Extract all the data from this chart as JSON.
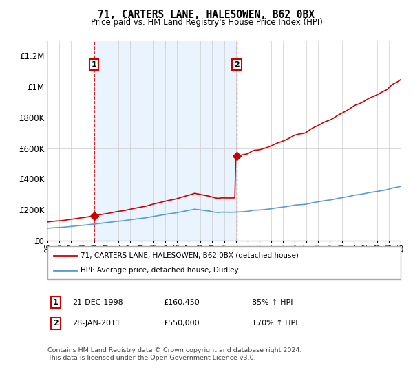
{
  "title": "71, CARTERS LANE, HALESOWEN, B62 0BX",
  "subtitle": "Price paid vs. HM Land Registry's House Price Index (HPI)",
  "hpi_label": "HPI: Average price, detached house, Dudley",
  "property_label": "71, CARTERS LANE, HALESOWEN, B62 0BX (detached house)",
  "sale1_date": "21-DEC-1998",
  "sale1_price": 160450,
  "sale1_hpi_pct": "85% ↑ HPI",
  "sale2_date": "28-JAN-2011",
  "sale2_price": 550000,
  "sale2_hpi_pct": "170% ↑ HPI",
  "footnote": "Contains HM Land Registry data © Crown copyright and database right 2024.\nThis data is licensed under the Open Government Licence v3.0.",
  "hpi_color": "#5b9bd5",
  "property_color": "#cc0000",
  "shade_color": "#ddeeff",
  "background_color": "#ffffff",
  "ylim": [
    0,
    1300000
  ],
  "yticks": [
    0,
    200000,
    400000,
    600000,
    800000,
    1000000,
    1200000
  ],
  "ytick_labels": [
    "£0",
    "£200K",
    "£400K",
    "£600K",
    "£800K",
    "£1M",
    "£1.2M"
  ],
  "year_start": 1995,
  "year_end": 2025,
  "sale1_year": 1998.96,
  "sale2_year": 2011.08
}
